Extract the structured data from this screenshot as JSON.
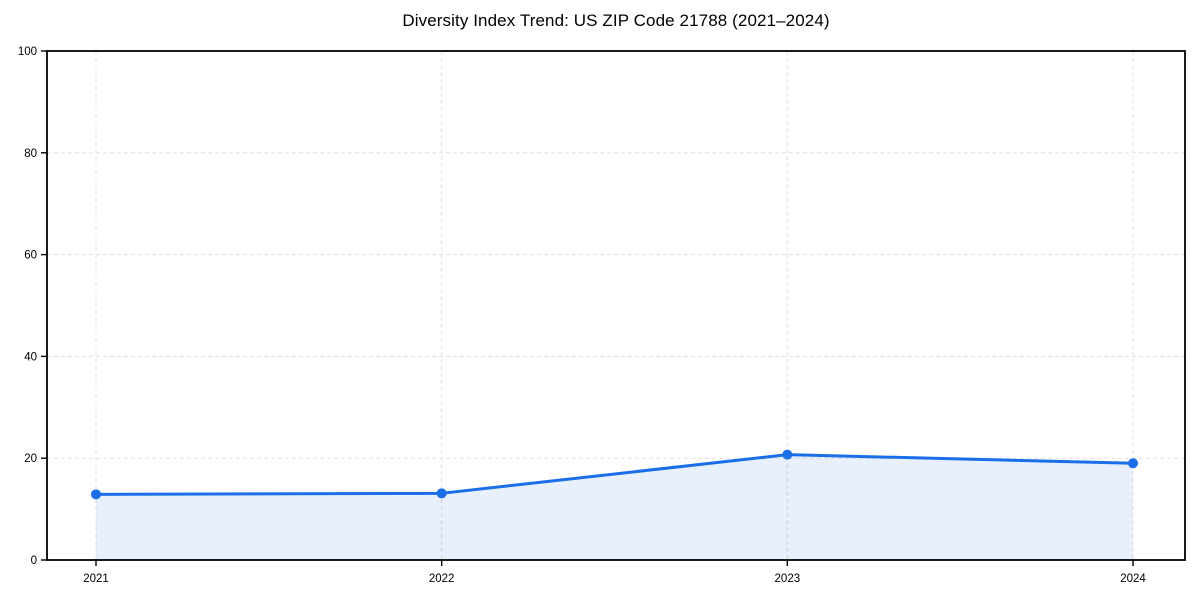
{
  "chart_data": {
    "type": "line",
    "title": "Diversity Index Trend: US ZIP Code 21788 (2021–2024)",
    "x": [
      "2021",
      "2022",
      "2023",
      "2024"
    ],
    "series": [
      {
        "name": "Diversity Index",
        "values": [
          12.9,
          13.1,
          20.7,
          19.0
        ]
      }
    ],
    "xlabel": "",
    "ylabel": "",
    "ylim": [
      0,
      100
    ],
    "yticks": [
      0,
      20,
      40,
      60,
      80,
      100
    ],
    "grid": true,
    "grid_style": "dashed",
    "legend_position": "none",
    "marker": "circle",
    "area_fill": true,
    "colors": {
      "line": "#1a6ee8",
      "marker": "#1a6ee8",
      "area": "rgba(26,110,232,0.10)",
      "grid": "#e0e0e0",
      "axis": "#000000",
      "background": "#ffffff"
    }
  }
}
